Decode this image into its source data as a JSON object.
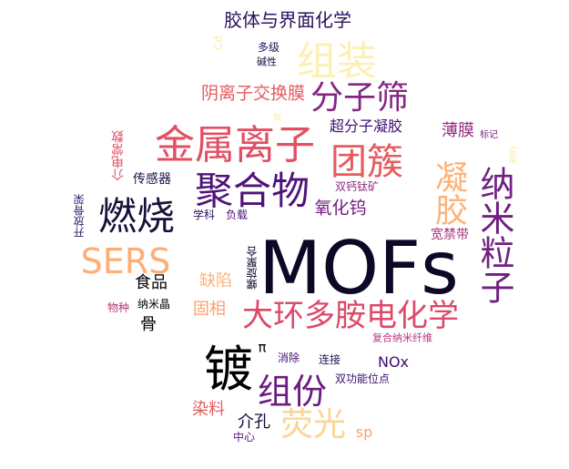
{
  "words": [
    {
      "text": "MOFs",
      "color": "#0c0826"
    },
    {
      "text": "大环多胺电化学",
      "color": "#dd4968"
    },
    {
      "text": "纳米粒子",
      "color": "#721f81"
    },
    {
      "text": "金属离子",
      "color": "#e24f63"
    },
    {
      "text": "聚合物",
      "color": "#4f127b"
    },
    {
      "text": "组装",
      "color": "#fcf0b4"
    },
    {
      "text": "团簇",
      "color": "#e55c5f"
    },
    {
      "text": "分子筛",
      "color": "#832681"
    },
    {
      "text": "燃烧",
      "color": "#1a1038"
    },
    {
      "text": "凝胶",
      "color": "#fcb37a"
    },
    {
      "text": "SERS",
      "color": "#fdae74"
    },
    {
      "text": "镀",
      "color": "#000004"
    },
    {
      "text": "组份",
      "color": "#6b1c81"
    },
    {
      "text": "荧光",
      "color": "#fbd595"
    },
    {
      "text": "阴离子交换膜",
      "color": "#e45a5f"
    },
    {
      "text": "胶体与界面化学",
      "color": "#2b115e"
    },
    {
      "text": "超分子凝胶",
      "color": "#3f0f72"
    },
    {
      "text": "氧化钨",
      "color": "#721f81"
    },
    {
      "text": "薄膜",
      "color": "#942c80"
    },
    {
      "text": "宽禁带",
      "color": "#a3307e"
    },
    {
      "text": "食品",
      "color": "#000004"
    },
    {
      "text": "缺陷",
      "color": "#fcb37a"
    },
    {
      "text": "固相",
      "color": "#fba06e"
    },
    {
      "text": "染料",
      "color": "#e55c5f"
    },
    {
      "text": "介孔",
      "color": "#140e36"
    },
    {
      "text": "NOx",
      "color": "#3b0f70"
    },
    {
      "text": "sp",
      "color": "#fd9f6c"
    },
    {
      "text": "骨",
      "color": "#000004"
    },
    {
      "text": "传感器",
      "color": "#1c1044"
    },
    {
      "text": "学科",
      "color": "#2b115e"
    },
    {
      "text": "负载",
      "color": "#4f127b"
    },
    {
      "text": "双钙钛矿",
      "color": "#942c80"
    },
    {
      "text": "多级",
      "color": "#2b115e"
    },
    {
      "text": "碱性",
      "color": "#1a1042"
    },
    {
      "text": "消除",
      "color": "#3f0f72"
    },
    {
      "text": "连接",
      "color": "#221150"
    },
    {
      "text": "双功能位点",
      "color": "#3b0f70"
    },
    {
      "text": "复合纳米纤维",
      "color": "#b5367a"
    },
    {
      "text": "物种",
      "color": "#b5367a"
    },
    {
      "text": "纳米晶",
      "color": "#000004"
    },
    {
      "text": "中心",
      "color": "#5f187f"
    },
    {
      "text": "π",
      "color": "#000004"
    },
    {
      "text": "标记",
      "color": "#7e2482"
    },
    {
      "text": "介电常数",
      "color": "#e24f63"
    },
    {
      "text": "开放骨架",
      "color": "#342071"
    },
    {
      "text": "螺旋聚合",
      "color": "#100b2d"
    },
    {
      "text": "Cd",
      "color": "#fde9a6"
    },
    {
      "text": "酞",
      "color": "#fde9a6"
    },
    {
      "text": "富集",
      "color": "#fcf0b4"
    }
  ]
}
